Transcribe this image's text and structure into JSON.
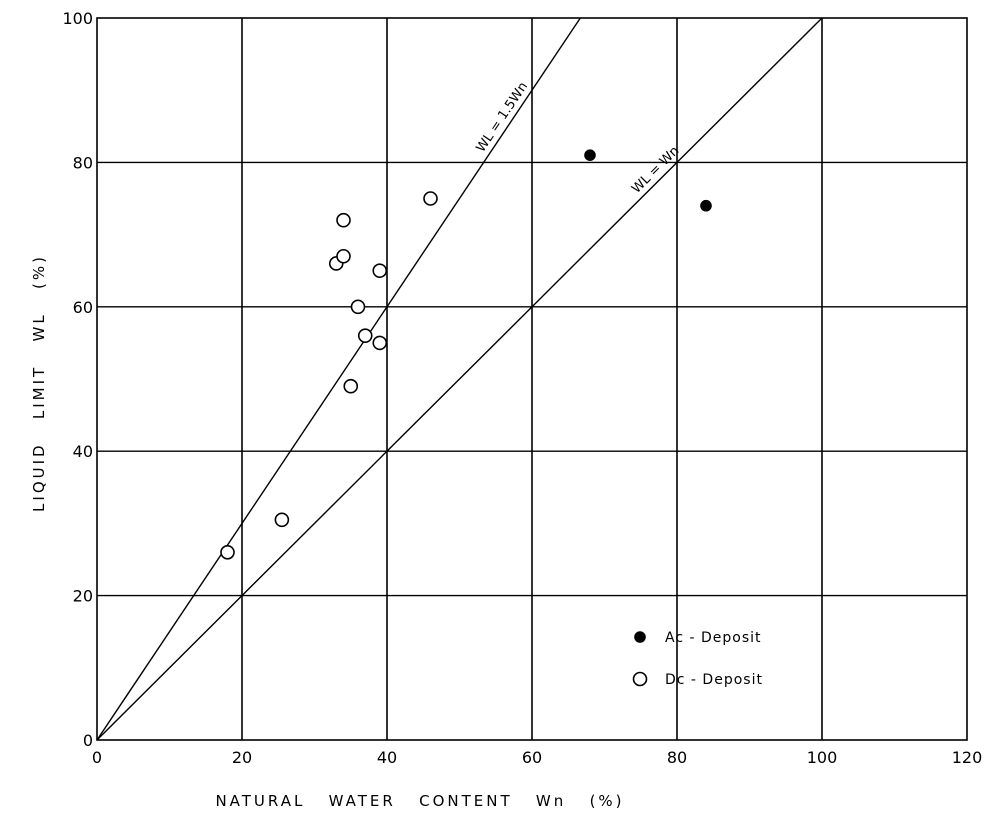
{
  "chart_data": {
    "type": "scatter",
    "title": "",
    "xlabel": "NATURAL   WATER   CONTENT   Wn   (%)",
    "ylabel": "LIQUID   LIMIT   WL   (%)",
    "xlim": [
      0,
      120
    ],
    "ylim": [
      0,
      100
    ],
    "x_ticks": [
      0,
      20,
      40,
      60,
      80,
      100,
      120
    ],
    "y_ticks": [
      0,
      20,
      40,
      60,
      80,
      100
    ],
    "grid": true,
    "legend_position": "bottom-right",
    "reference_lines": [
      {
        "label": "WL = 1.5Wn",
        "slope": 1.5
      },
      {
        "label": "WL = Wn",
        "slope": 1.0
      }
    ],
    "series": [
      {
        "name": "Ac - Deposit",
        "marker": "filled-circle",
        "color": "#000000",
        "points": [
          {
            "x": 68,
            "y": 81
          },
          {
            "x": 84,
            "y": 74
          }
        ]
      },
      {
        "name": "Dc - Deposit",
        "marker": "open-circle",
        "color": "#000000",
        "points": [
          {
            "x": 18,
            "y": 26
          },
          {
            "x": 25.5,
            "y": 30.5
          },
          {
            "x": 33,
            "y": 66
          },
          {
            "x": 34,
            "y": 67
          },
          {
            "x": 34,
            "y": 72
          },
          {
            "x": 35,
            "y": 49
          },
          {
            "x": 36,
            "y": 60
          },
          {
            "x": 37,
            "y": 56
          },
          {
            "x": 39,
            "y": 55
          },
          {
            "x": 39,
            "y": 65
          },
          {
            "x": 46,
            "y": 75
          }
        ]
      }
    ]
  }
}
